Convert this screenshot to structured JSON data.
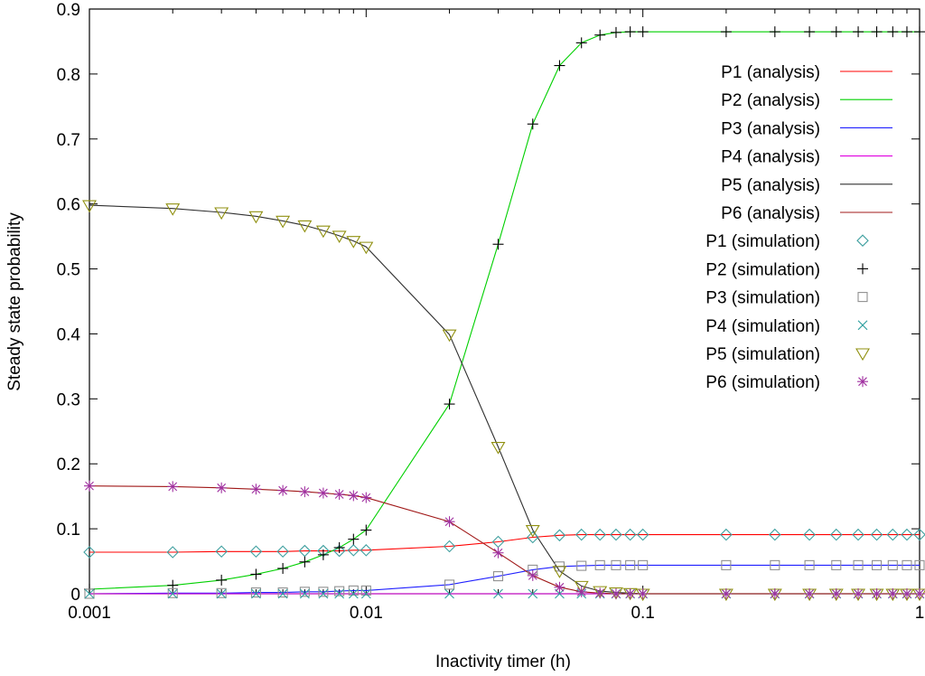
{
  "chart_data": {
    "type": "line",
    "xlabel": "Inactivity timer (h)",
    "ylabel": "Steady state probability",
    "xscale": "log",
    "xlim": [
      0.001,
      1
    ],
    "ylim": [
      0,
      0.9
    ],
    "x_ticks": [
      "0.001",
      "0.01",
      "0.1",
      "1"
    ],
    "y_ticks": [
      "0",
      "0.1",
      "0.2",
      "0.3",
      "0.4",
      "0.5",
      "0.6",
      "0.7",
      "0.8",
      "0.9"
    ],
    "grid": false,
    "legend_position": "top-right",
    "x": [
      0.001,
      0.002,
      0.003,
      0.004,
      0.005,
      0.006,
      0.007,
      0.008,
      0.009,
      0.01,
      0.02,
      0.03,
      0.04,
      0.05,
      0.06,
      0.07,
      0.08,
      0.09,
      0.1,
      0.2,
      0.3,
      0.4,
      0.5,
      0.6,
      0.7,
      0.8,
      0.9,
      1.0
    ],
    "analysis_series": [
      {
        "name": "P1 (analysis)",
        "color": "#ff0000",
        "values": [
          0.064,
          0.064,
          0.065,
          0.065,
          0.065,
          0.066,
          0.066,
          0.066,
          0.067,
          0.067,
          0.073,
          0.08,
          0.087,
          0.09,
          0.091,
          0.091,
          0.091,
          0.091,
          0.091,
          0.091,
          0.091,
          0.091,
          0.091,
          0.091,
          0.091,
          0.091,
          0.091,
          0.091
        ]
      },
      {
        "name": "P2 (analysis)",
        "color": "#00d000",
        "values": [
          0.007,
          0.013,
          0.021,
          0.03,
          0.039,
          0.049,
          0.06,
          0.071,
          0.084,
          0.098,
          0.292,
          0.538,
          0.723,
          0.813,
          0.848,
          0.86,
          0.864,
          0.865,
          0.865,
          0.865,
          0.865,
          0.865,
          0.865,
          0.865,
          0.865,
          0.865,
          0.865,
          0.865
        ]
      },
      {
        "name": "P3 (analysis)",
        "color": "#2020ff",
        "values": [
          0.0,
          0.001,
          0.001,
          0.002,
          0.002,
          0.003,
          0.003,
          0.004,
          0.005,
          0.005,
          0.014,
          0.027,
          0.037,
          0.042,
          0.043,
          0.044,
          0.044,
          0.044,
          0.044,
          0.044,
          0.044,
          0.044,
          0.044,
          0.044,
          0.044,
          0.044,
          0.044,
          0.044
        ]
      },
      {
        "name": "P4 (analysis)",
        "color": "#e000e0",
        "values": [
          0.0,
          0.0,
          0.0,
          0.0,
          0.0,
          0.0,
          0.0,
          0.0,
          0.0,
          0.0,
          0.0,
          0.0,
          0.0,
          0.0,
          0.0,
          0.0,
          0.0,
          0.0,
          0.0,
          0.0,
          0.0,
          0.0,
          0.0,
          0.0,
          0.0,
          0.0,
          0.0,
          0.0
        ]
      },
      {
        "name": "P5 (analysis)",
        "color": "#303030",
        "values": [
          0.598,
          0.593,
          0.587,
          0.581,
          0.574,
          0.567,
          0.559,
          0.551,
          0.543,
          0.534,
          0.399,
          0.226,
          0.098,
          0.035,
          0.012,
          0.004,
          0.002,
          0.001,
          0.0,
          0.0,
          0.0,
          0.0,
          0.0,
          0.0,
          0.0,
          0.0,
          0.0,
          0.0
        ]
      },
      {
        "name": "P6 (analysis)",
        "color": "#a01818",
        "values": [
          0.166,
          0.165,
          0.163,
          0.161,
          0.159,
          0.157,
          0.155,
          0.153,
          0.151,
          0.148,
          0.111,
          0.063,
          0.028,
          0.01,
          0.003,
          0.001,
          0.0,
          0.0,
          0.0,
          0.0,
          0.0,
          0.0,
          0.0,
          0.0,
          0.0,
          0.0,
          0.0,
          0.0
        ]
      }
    ],
    "simulation_series": [
      {
        "name": "P1 (simulation)",
        "marker": "diamond",
        "color": "#40a0a0",
        "values": [
          0.064,
          0.064,
          0.065,
          0.065,
          0.065,
          0.066,
          0.066,
          0.066,
          0.067,
          0.067,
          0.073,
          0.08,
          0.087,
          0.09,
          0.091,
          0.091,
          0.091,
          0.091,
          0.091,
          0.091,
          0.091,
          0.091,
          0.091,
          0.091,
          0.091,
          0.091,
          0.091,
          0.091
        ]
      },
      {
        "name": "P2 (simulation)",
        "marker": "plus",
        "color": "#000000",
        "values": [
          0.007,
          0.013,
          0.021,
          0.03,
          0.039,
          0.049,
          0.06,
          0.071,
          0.084,
          0.098,
          0.292,
          0.538,
          0.723,
          0.813,
          0.848,
          0.86,
          0.864,
          0.865,
          0.865,
          0.865,
          0.865,
          0.865,
          0.865,
          0.865,
          0.865,
          0.865,
          0.865,
          0.865
        ]
      },
      {
        "name": "P3 (simulation)",
        "marker": "square",
        "color": "#909090",
        "values": [
          0.0,
          0.001,
          0.001,
          0.002,
          0.002,
          0.003,
          0.003,
          0.004,
          0.005,
          0.005,
          0.014,
          0.027,
          0.037,
          0.042,
          0.043,
          0.044,
          0.044,
          0.044,
          0.044,
          0.044,
          0.044,
          0.044,
          0.044,
          0.044,
          0.044,
          0.044,
          0.044,
          0.044
        ]
      },
      {
        "name": "P4 (simulation)",
        "marker": "cross",
        "color": "#30a0a0",
        "values": [
          0.0,
          0.0,
          0.0,
          0.0,
          0.0,
          0.0,
          0.0,
          0.0,
          0.0,
          0.0,
          0.0,
          0.0,
          0.0,
          0.0,
          0.0,
          0.0,
          0.0,
          0.0,
          0.0,
          0.0,
          0.0,
          0.0,
          0.0,
          0.0,
          0.0,
          0.0,
          0.0,
          0.0
        ]
      },
      {
        "name": "P5 (simulation)",
        "marker": "triangle-down",
        "color": "#909010",
        "values": [
          0.598,
          0.593,
          0.587,
          0.581,
          0.574,
          0.567,
          0.559,
          0.551,
          0.543,
          0.534,
          0.399,
          0.226,
          0.098,
          0.035,
          0.012,
          0.004,
          0.002,
          0.001,
          0.0,
          0.0,
          0.0,
          0.0,
          0.0,
          0.0,
          0.0,
          0.0,
          0.0,
          0.0
        ]
      },
      {
        "name": "P6 (simulation)",
        "marker": "asterisk",
        "color": "#a030a0",
        "values": [
          0.166,
          0.165,
          0.163,
          0.161,
          0.159,
          0.157,
          0.155,
          0.153,
          0.151,
          0.148,
          0.111,
          0.063,
          0.028,
          0.01,
          0.003,
          0.001,
          0.0,
          0.0,
          0.0,
          0.0,
          0.0,
          0.0,
          0.0,
          0.0,
          0.0,
          0.0,
          0.0,
          0.0
        ]
      }
    ]
  }
}
